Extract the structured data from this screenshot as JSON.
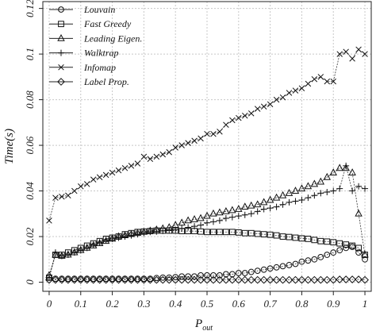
{
  "chart_data": {
    "type": "line",
    "title": "",
    "xlabel_main": "P",
    "xlabel_sub": "out",
    "ylabel": "Time(s)",
    "xlim": [
      -0.02,
      1.02
    ],
    "ylim": [
      -0.004,
      0.123
    ],
    "xticks": [
      "0",
      "0.1",
      "0.2",
      "0.3",
      "0.4",
      "0.5",
      "0.6",
      "0.7",
      "0.8",
      "0.9",
      "1"
    ],
    "xtick_values": [
      0,
      0.1,
      0.2,
      0.3,
      0.4,
      0.5,
      0.6,
      0.7,
      0.8,
      0.9,
      1.0
    ],
    "yticks": [
      "0",
      "0.02",
      "0.04",
      "0.06",
      "0.08",
      "0.1",
      "0.12"
    ],
    "ytick_values": [
      0,
      0.02,
      0.04,
      0.06,
      0.08,
      0.1,
      0.12
    ],
    "grid": true,
    "legend_position": "top-left",
    "x": [
      0,
      0.02,
      0.04,
      0.06,
      0.08,
      0.1,
      0.12,
      0.14,
      0.16,
      0.18,
      0.2,
      0.22,
      0.24,
      0.26,
      0.28,
      0.3,
      0.32,
      0.34,
      0.36,
      0.38,
      0.4,
      0.42,
      0.44,
      0.46,
      0.48,
      0.5,
      0.52,
      0.54,
      0.56,
      0.58,
      0.6,
      0.62,
      0.64,
      0.66,
      0.68,
      0.7,
      0.72,
      0.74,
      0.76,
      0.78,
      0.8,
      0.82,
      0.84,
      0.86,
      0.88,
      0.9,
      0.92,
      0.94,
      0.96,
      0.98,
      1.0
    ],
    "series": [
      {
        "name": "Louvain",
        "marker": "circle",
        "values": [
          0.002,
          0.0015,
          0.0015,
          0.0015,
          0.0015,
          0.0015,
          0.0015,
          0.0015,
          0.0015,
          0.0015,
          0.0015,
          0.0015,
          0.0015,
          0.0015,
          0.0015,
          0.0015,
          0.0015,
          0.0018,
          0.002,
          0.002,
          0.0022,
          0.0025,
          0.0025,
          0.0025,
          0.003,
          0.003,
          0.003,
          0.003,
          0.0035,
          0.0035,
          0.004,
          0.004,
          0.0045,
          0.005,
          0.0055,
          0.006,
          0.0065,
          0.007,
          0.0075,
          0.008,
          0.009,
          0.0095,
          0.01,
          0.011,
          0.012,
          0.013,
          0.014,
          0.015,
          0.0155,
          0.013,
          0.01
        ]
      },
      {
        "name": "Fast Greedy",
        "marker": "square",
        "values": [
          0.002,
          0.012,
          0.012,
          0.013,
          0.014,
          0.015,
          0.016,
          0.017,
          0.018,
          0.019,
          0.0195,
          0.02,
          0.021,
          0.0215,
          0.022,
          0.0222,
          0.0224,
          0.0226,
          0.0226,
          0.0226,
          0.0226,
          0.0224,
          0.0224,
          0.0224,
          0.0222,
          0.022,
          0.022,
          0.022,
          0.022,
          0.022,
          0.0218,
          0.0215,
          0.0215,
          0.0212,
          0.021,
          0.0208,
          0.0205,
          0.02,
          0.0198,
          0.0195,
          0.0192,
          0.019,
          0.0185,
          0.018,
          0.0178,
          0.0175,
          0.017,
          0.0165,
          0.016,
          0.015,
          0.012
        ]
      },
      {
        "name": "Leading Eigen.",
        "marker": "triangle",
        "values": [
          0.003,
          0.012,
          0.0115,
          0.012,
          0.013,
          0.014,
          0.015,
          0.016,
          0.017,
          0.018,
          0.019,
          0.02,
          0.0205,
          0.021,
          0.0215,
          0.022,
          0.0225,
          0.023,
          0.0235,
          0.024,
          0.025,
          0.026,
          0.027,
          0.0275,
          0.028,
          0.029,
          0.03,
          0.0305,
          0.031,
          0.0315,
          0.032,
          0.033,
          0.0335,
          0.034,
          0.035,
          0.036,
          0.037,
          0.038,
          0.039,
          0.04,
          0.041,
          0.042,
          0.043,
          0.044,
          0.046,
          0.048,
          0.05,
          0.05,
          0.048,
          0.03,
          0.012
        ]
      },
      {
        "name": "Walktrap",
        "marker": "plus",
        "values": [
          0.002,
          0.013,
          0.0115,
          0.012,
          0.013,
          0.014,
          0.015,
          0.0165,
          0.0175,
          0.0185,
          0.019,
          0.0195,
          0.02,
          0.0205,
          0.021,
          0.0215,
          0.022,
          0.0222,
          0.0225,
          0.0228,
          0.023,
          0.0235,
          0.024,
          0.0245,
          0.025,
          0.026,
          0.0265,
          0.027,
          0.028,
          0.0285,
          0.029,
          0.0295,
          0.03,
          0.031,
          0.032,
          0.0325,
          0.033,
          0.034,
          0.035,
          0.0355,
          0.036,
          0.037,
          0.038,
          0.039,
          0.0395,
          0.04,
          0.041,
          0.051,
          0.04,
          0.042,
          0.041
        ]
      },
      {
        "name": "Infomap",
        "marker": "x",
        "values": [
          0.027,
          0.037,
          0.0375,
          0.038,
          0.04,
          0.042,
          0.043,
          0.045,
          0.046,
          0.047,
          0.048,
          0.049,
          0.05,
          0.051,
          0.052,
          0.055,
          0.054,
          0.055,
          0.056,
          0.057,
          0.059,
          0.06,
          0.061,
          0.062,
          0.063,
          0.065,
          0.065,
          0.066,
          0.069,
          0.071,
          0.072,
          0.073,
          0.074,
          0.076,
          0.077,
          0.078,
          0.08,
          0.081,
          0.083,
          0.084,
          0.085,
          0.087,
          0.089,
          0.09,
          0.088,
          0.088,
          0.1,
          0.101,
          0.098,
          0.102,
          0.1
        ]
      },
      {
        "name": "Label Prop.",
        "marker": "diamond",
        "values": [
          0.001,
          0.001,
          0.001,
          0.001,
          0.001,
          0.001,
          0.001,
          0.001,
          0.001,
          0.001,
          0.001,
          0.001,
          0.001,
          0.001,
          0.001,
          0.001,
          0.001,
          0.001,
          0.001,
          0.001,
          0.001,
          0.001,
          0.001,
          0.001,
          0.001,
          0.001,
          0.001,
          0.001,
          0.001,
          0.001,
          0.001,
          0.001,
          0.001,
          0.001,
          0.001,
          0.001,
          0.001,
          0.001,
          0.001,
          0.001,
          0.001,
          0.001,
          0.001,
          0.001,
          0.001,
          0.001,
          0.0012,
          0.0012,
          0.0012,
          0.0012,
          0.001
        ]
      }
    ]
  }
}
